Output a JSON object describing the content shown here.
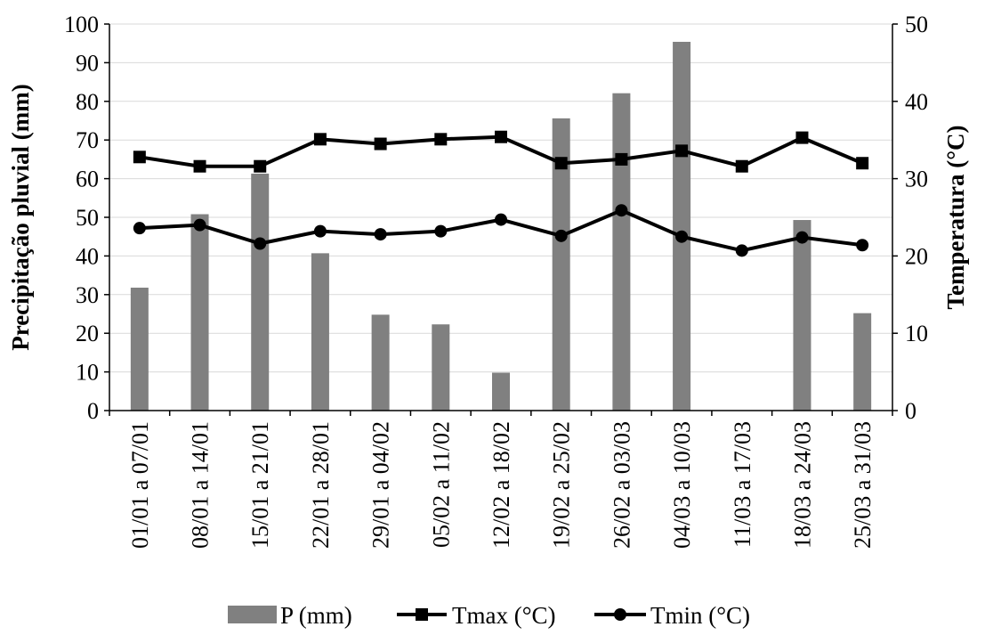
{
  "chart_data": {
    "type": "bar+line",
    "categories": [
      "01/01 a 07/01",
      "08/01 a 14/01",
      "15/01 a 21/01",
      "22/01 a 28/01",
      "29/01 a 04/02",
      "05/02 a 11/02",
      "12/02 a 18/02",
      "19/02 a 25/02",
      "26/02 a 03/03",
      "04/03 a 10/03",
      "11/03 a 17/03",
      "18/03 a 24/03",
      "25/03 a 31/03"
    ],
    "series": [
      {
        "name": "P (mm)",
        "type": "bar",
        "axis": "left",
        "color": "#808080",
        "values": [
          31.8,
          50.8,
          61.3,
          40.7,
          24.8,
          22.3,
          9.8,
          75.6,
          82.1,
          95.4,
          0,
          49.3,
          25.2
        ]
      },
      {
        "name": "Tmax (°C)",
        "type": "line",
        "axis": "right",
        "marker": "square",
        "color": "#000000",
        "values": [
          32.8,
          31.6,
          31.6,
          35.1,
          34.5,
          35.1,
          35.4,
          32.0,
          32.5,
          33.6,
          31.6,
          35.3,
          32.0
        ]
      },
      {
        "name": "Tmin (°C)",
        "type": "line",
        "axis": "right",
        "marker": "circle",
        "color": "#000000",
        "values": [
          23.6,
          24.0,
          21.6,
          23.2,
          22.8,
          23.2,
          24.7,
          22.6,
          25.9,
          22.5,
          20.7,
          22.4,
          21.4
        ]
      }
    ],
    "y_left": {
      "label": "Precipitação pluvial (mm)",
      "range": [
        0,
        100
      ],
      "ticks": [
        0,
        10,
        20,
        30,
        40,
        50,
        60,
        70,
        80,
        90,
        100
      ]
    },
    "y_right": {
      "label": "Temperatura (°C)",
      "range": [
        0,
        50
      ],
      "ticks": [
        0,
        10,
        20,
        30,
        40,
        50
      ]
    },
    "grid": true,
    "legend_position": "bottom"
  }
}
